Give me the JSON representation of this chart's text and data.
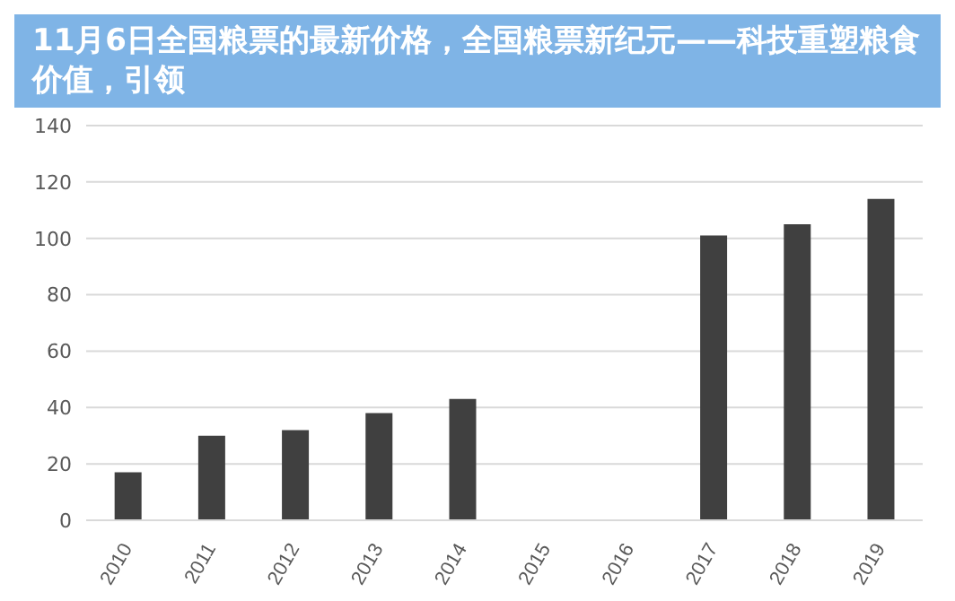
{
  "chart_data": {
    "type": "bar",
    "title": "11月6日全国粮票的最新价格，全国粮票新纪元——科技重塑粮食价值，引领",
    "categories": [
      "2010",
      "2011",
      "2012",
      "2013",
      "2014",
      "2015",
      "2016",
      "2017",
      "2018",
      "2019"
    ],
    "values": [
      17,
      30,
      32,
      38,
      43,
      null,
      null,
      101,
      105,
      114
    ],
    "color": "#404040",
    "ylim": [
      0,
      140
    ],
    "yticks": [
      0,
      20,
      40,
      60,
      80,
      100,
      120,
      140
    ],
    "grid": "y"
  }
}
